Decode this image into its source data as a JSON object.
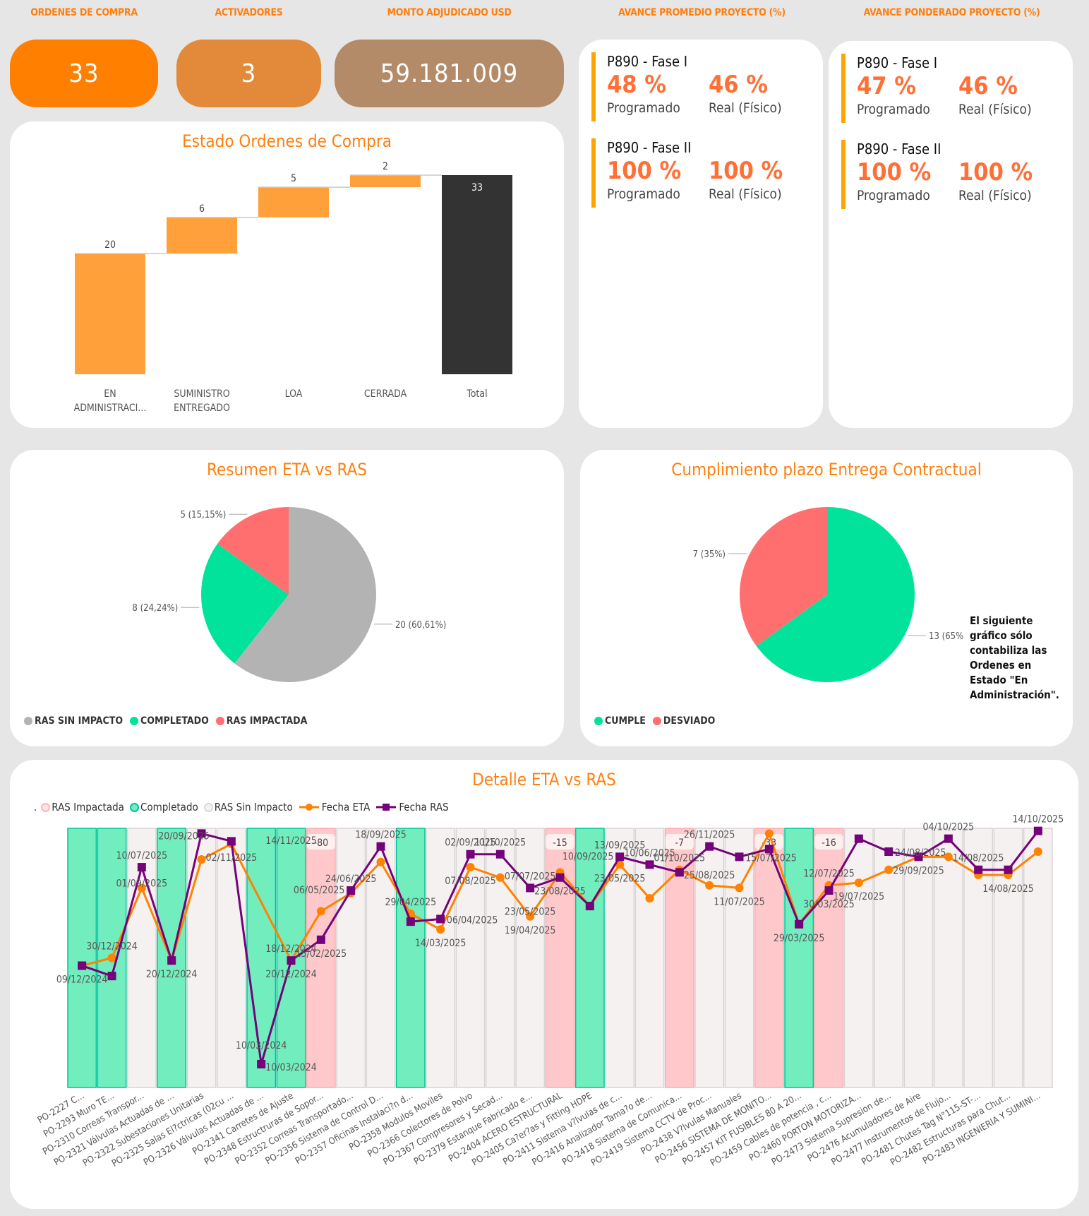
{
  "kpis": [
    {
      "label": "ORDENES DE COMPRA",
      "value": "33",
      "color": "#ff7f00"
    },
    {
      "label": "ACTIVADORES",
      "value": "3",
      "color": "#e2893a"
    },
    {
      "label": "MONTO ADJUDICADO USD",
      "value": "59.181.009",
      "color": "#b48b68"
    }
  ],
  "avance_promedio": {
    "header": "AVANCE PROMEDIO PROYECTO (%)",
    "phases": [
      {
        "name": "P890 - Fase I",
        "programado": "48 %",
        "real": "46 %",
        "programado_label": "Programado",
        "real_label": "Real (Físico)"
      },
      {
        "name": "P890 - Fase II",
        "programado": "100 %",
        "real": "100 %",
        "programado_label": "Programado",
        "real_label": "Real (Físico)"
      }
    ]
  },
  "avance_ponderado": {
    "header": "AVANCE PONDERADO PROYECTO (%)",
    "phases": [
      {
        "name": "P890 - Fase I",
        "programado": "47 %",
        "real": "46 %",
        "programado_label": "Programado",
        "real_label": "Real (Físico)"
      },
      {
        "name": "P890 - Fase II",
        "programado": "100 %",
        "real": "100 %",
        "programado_label": "Programado",
        "real_label": "Real (Físico)"
      }
    ]
  },
  "chart_data": [
    {
      "type": "bar",
      "subtype": "waterfall",
      "title": "Estado Ordenes de Compra",
      "categories": [
        "EN ADMINISTRACI...",
        "SUMINISTRO ENTREGADO",
        "LOA",
        "CERRADA",
        "Total"
      ],
      "category_lines": [
        [
          "EN",
          "ADMINISTRACI..."
        ],
        [
          "SUMINISTRO",
          "ENTREGADO"
        ],
        [
          "LOA"
        ],
        [
          "CERRADA"
        ],
        [
          "Total"
        ]
      ],
      "values": [
        20,
        6,
        5,
        2,
        33
      ],
      "is_total": [
        false,
        false,
        false,
        false,
        true
      ],
      "colors": {
        "step": "#ffa03a",
        "total": "#333333"
      },
      "ylim": [
        0,
        33
      ],
      "grid": false
    },
    {
      "type": "pie",
      "title": "Resumen ETA vs RAS",
      "slices": [
        {
          "label": "RAS SIN IMPACTO",
          "value": 20,
          "percent": "60,61%",
          "color": "#b3b3b3"
        },
        {
          "label": "COMPLETADO",
          "value": 8,
          "percent": "24,24%",
          "color": "#01e39a"
        },
        {
          "label": "RAS IMPACTADA",
          "value": 5,
          "percent": "15,15%",
          "color": "#ff6f6f"
        }
      ],
      "data_labels": [
        "20 (60,61%)",
        "8 (24,24%)",
        "5 (15,15%)"
      ],
      "legend_position": "bottom-left"
    },
    {
      "type": "pie",
      "title": "Cumplimiento plazo Entrega Contractual",
      "slices": [
        {
          "label": "CUMPLE",
          "value": 13,
          "percent": "65%",
          "color": "#01e39a"
        },
        {
          "label": "DESVIADO",
          "value": 7,
          "percent": "35%",
          "color": "#ff6f6f"
        }
      ],
      "data_labels": [
        "13 (65%",
        "7 (35%)"
      ],
      "legend_position": "bottom-left",
      "note": [
        "El siguiente",
        "gráfico sólo",
        "contabiliza las",
        "Ordenes en",
        "Estado \"En",
        "Administración\"."
      ]
    },
    {
      "type": "line",
      "title": "Detalle ETA vs RAS",
      "legend_prefix": ".",
      "legend": [
        {
          "label": "RAS Impactada",
          "kind": "ring",
          "color": "#ffb3b8"
        },
        {
          "label": "Completado",
          "kind": "ring",
          "color": "#00c49a"
        },
        {
          "label": "RAS Sin Impacto",
          "kind": "ring",
          "color": "#d9d9d9"
        },
        {
          "label": "Fecha ETA",
          "kind": "line-dot",
          "color": "#ff8200"
        },
        {
          "label": "Fecha RAS",
          "kind": "line-square",
          "color": "#74027a"
        }
      ],
      "band_colors": {
        "impactada": "#ffc9cc",
        "completado": "#72edbe",
        "sin_impacto": "#f5f1f1"
      },
      "ylim": [
        0,
        100
      ],
      "y_axis_note": "relative date position (no visible y axis)",
      "points": [
        {
          "po": "PO-2227 C...",
          "status": "completado",
          "eta": 47,
          "ras": 47,
          "labels": [
            {
              "text": "09/12/2024",
              "pos": "below"
            }
          ]
        },
        {
          "po": "PO-2293 Muro TE...",
          "status": "completado",
          "eta": 50,
          "ras": 43,
          "labels": [
            {
              "text": "30/12/2024",
              "pos": "above"
            }
          ]
        },
        {
          "po": "PO-2310 Correas Transpor...",
          "status": "sin_impacto",
          "eta": 77,
          "ras": 85,
          "labels": [
            {
              "text": "10/07/2025",
              "pos": "above"
            },
            {
              "text": "01/09/2025",
              "pos": "eta-above"
            }
          ]
        },
        {
          "po": "PO-2321 Válvulas Actuadas de ...",
          "status": "completado",
          "eta": 49,
          "ras": 49,
          "labels": [
            {
              "text": "20/12/2024",
              "pos": "below"
            }
          ]
        },
        {
          "po": "PO-2322 Subestaciones Unitarias",
          "status": "sin_impacto",
          "eta": 88,
          "ras": 98,
          "labels": [
            {
              "text": "20/09/2025",
              "pos": "below-left"
            }
          ]
        },
        {
          "po": "PO-2325 Salas El?ctricas (02cu ...",
          "status": "sin_impacto",
          "eta": 94,
          "ras": 95,
          "labels": [
            {
              "text": "02/11/2025",
              "pos": "below"
            }
          ]
        },
        {
          "po": "PO-2326 Válvulas Actuadas de ...",
          "status": "completado",
          "eta": null,
          "ras": 9,
          "labels": [
            {
              "text": "10/03/2024",
              "pos": "above"
            }
          ]
        },
        {
          "po": "PO-2341 Carretes de Ajuste",
          "status": "completado",
          "eta": 49,
          "ras": 49,
          "labels": [
            {
              "text": "14/11/2025",
              "pos": "top"
            },
            {
              "text": "18/12/2024",
              "pos": "above"
            },
            {
              "text": "20/12/2024",
              "pos": "below"
            },
            {
              "text": "10/03/2024",
              "pos": "bottom"
            }
          ]
        },
        {
          "po": "PO-2348 Estructruras de Sopor...",
          "status": "impactada",
          "eta": 68,
          "ras": 57,
          "delta": "-80",
          "labels": [
            {
              "text": "15/02/2025",
              "pos": "below"
            }
          ]
        },
        {
          "po": "PO-2352 Correas Transportado...",
          "status": "sin_impacto",
          "eta": 75,
          "ras": 76,
          "labels": [
            {
              "text": "06/05/2025",
              "pos": "left"
            },
            {
              "text": "24/06/2025",
              "pos": "above"
            }
          ]
        },
        {
          "po": "PO-2356 Sistema de Control D...",
          "status": "sin_impacto",
          "eta": 87,
          "ras": 93,
          "labels": [
            {
              "text": "18/09/2025",
              "pos": "above"
            }
          ]
        },
        {
          "po": "PO-2357 Oficinas Instalaci?n d...",
          "status": "completado",
          "eta": 67,
          "ras": 64,
          "labels": [
            {
              "text": "29/04/2025",
              "pos": "above"
            }
          ]
        },
        {
          "po": "PO-2358 Modulos Moviles",
          "status": "sin_impacto",
          "eta": 61,
          "ras": 65,
          "labels": [
            {
              "text": "06/04/2025",
              "pos": "right"
            },
            {
              "text": "14/03/2025",
              "pos": "below"
            }
          ]
        },
        {
          "po": "PO-2366 Colectores de Polvo",
          "status": "sin_impacto",
          "eta": 85,
          "ras": 90,
          "labels": [
            {
              "text": "02/09/2025",
              "pos": "above"
            },
            {
              "text": "07/08/2025",
              "pos": "below"
            }
          ]
        },
        {
          "po": "PO-2367 Compresores y Secad...",
          "status": "sin_impacto",
          "eta": 81,
          "ras": 90,
          "labels": [
            {
              "text": "11/10/2025",
              "pos": "above"
            }
          ]
        },
        {
          "po": "PO-2379 Estanque Fabricado e...",
          "status": "sin_impacto",
          "eta": 66,
          "ras": 77,
          "labels": [
            {
              "text": "07/07/2025",
              "pos": "above"
            },
            {
              "text": "23/05/2025",
              "pos": "mid"
            },
            {
              "text": "19/04/2025",
              "pos": "below"
            }
          ]
        },
        {
          "po": "PO-2404 ACERO ESTRUCTURAL",
          "status": "impactada",
          "eta": 83,
          "ras": 81,
          "delta": "-15",
          "labels": [
            {
              "text": "23/08/2025",
              "pos": "below"
            }
          ]
        },
        {
          "po": "PO-2405 Ca?er?as y Fitting HDPE",
          "status": "completado",
          "eta": 70,
          "ras": 70,
          "labels": []
        },
        {
          "po": "PO-2411 Sistema v?lvulas de c...",
          "status": "sin_impacto",
          "eta": 86,
          "ras": 89,
          "labels": [
            {
              "text": "13/09/2025",
              "pos": "above"
            },
            {
              "text": "10/09/2025",
              "pos": "left"
            },
            {
              "text": "23/05/2025",
              "pos": "below"
            }
          ]
        },
        {
          "po": "PO-2416 Analizador Tama?o de...",
          "status": "sin_impacto",
          "eta": 73,
          "ras": 86,
          "labels": [
            {
              "text": "10/06/2025",
              "pos": "above"
            }
          ]
        },
        {
          "po": "PO-2418 Sistema de Comunica...",
          "status": "impactada",
          "eta": 84,
          "ras": 83,
          "delta": "-7",
          "labels": [
            {
              "text": "01/10/2025",
              "pos": "above"
            }
          ]
        },
        {
          "po": "PO-2419 Sistema CCTV de Proc...",
          "status": "sin_impacto",
          "eta": 78,
          "ras": 93,
          "labels": [
            {
              "text": "26/11/2025",
              "pos": "above"
            },
            {
              "text": "25/08/2025",
              "pos": "mid"
            }
          ]
        },
        {
          "po": "PO-2438 V?lvulas Manuales",
          "status": "sin_impacto",
          "eta": 77,
          "ras": 89,
          "labels": [
            {
              "text": "15/07/2025",
              "pos": "right"
            },
            {
              "text": "11/07/2025",
              "pos": "below"
            }
          ]
        },
        {
          "po": "PO-2456 SISTEMA DE MONITO...",
          "status": "impactada",
          "eta": 98,
          "ras": 92,
          "delta": "-33",
          "labels": []
        },
        {
          "po": "PO-2457 KIT FUSIBLES 80 A 20...",
          "status": "completado",
          "eta": 63,
          "ras": 63,
          "labels": [
            {
              "text": "29/03/2025",
              "pos": "below"
            }
          ]
        },
        {
          "po": "PO-2459 Cables de potencia , c...",
          "status": "impactada",
          "eta": 78,
          "ras": 76,
          "delta": "-16",
          "labels": [
            {
              "text": "12/07/2025",
              "pos": "above"
            },
            {
              "text": "30/03/2025",
              "pos": "below"
            }
          ]
        },
        {
          "po": "PO-2460 PORTON MOTORIZA...",
          "status": "sin_impacto",
          "eta": 79,
          "ras": 96,
          "labels": [
            {
              "text": "19/07/2025",
              "pos": "below"
            }
          ]
        },
        {
          "po": "PO-2473 Sistema Supresion de...",
          "status": "sin_impacto",
          "eta": 84,
          "ras": 91,
          "labels": [
            {
              "text": "24/08/2025",
              "pos": "right"
            }
          ]
        },
        {
          "po": "PO-2476 Acumuladores de Aire",
          "status": "sin_impacto",
          "eta": 89,
          "ras": 89,
          "labels": [
            {
              "text": "29/09/2025",
              "pos": "below"
            }
          ]
        },
        {
          "po": "PO-2477 Instrumentos de Flujo...",
          "status": "sin_impacto",
          "eta": 89,
          "ras": 96,
          "labels": [
            {
              "text": "04/10/2025",
              "pos": "above"
            }
          ]
        },
        {
          "po": "PO-2481 Chutes Tag N°115-ST-...",
          "status": "sin_impacto",
          "eta": 82,
          "ras": 84,
          "labels": [
            {
              "text": "14/08/2025",
              "pos": "above"
            }
          ]
        },
        {
          "po": "PO-2482 Estructuras para Chut...",
          "status": "sin_impacto",
          "eta": 82,
          "ras": 84,
          "labels": [
            {
              "text": "14/08/2025",
              "pos": "below"
            }
          ]
        },
        {
          "po": "PO-2483 INGENIERIA Y SUMINI...",
          "status": "sin_impacto",
          "eta": 91,
          "ras": 99,
          "labels": [
            {
              "text": "14/10/2025",
              "pos": "above"
            }
          ]
        }
      ]
    }
  ]
}
